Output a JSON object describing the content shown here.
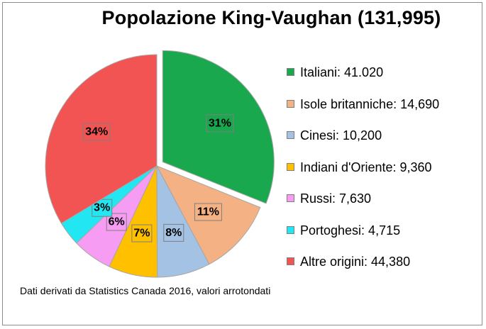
{
  "chart_data": {
    "type": "pie",
    "title": "Popolazione King-Vaughan  (131,995)",
    "slices": [
      {
        "legend": "Italiani: 41.020",
        "value": 41020,
        "percent_label": "31%",
        "color": "#1aa84f",
        "exploded": true
      },
      {
        "legend": "Isole britanniche: 14,690",
        "value": 14690,
        "percent_label": "11%",
        "color": "#f4b183",
        "exploded": false
      },
      {
        "legend": "Cinesi: 10,200",
        "value": 10200,
        "percent_label": "8%",
        "color": "#a4c2e4",
        "exploded": false
      },
      {
        "legend": "Indiani d'Oriente: 9,360",
        "value": 9360,
        "percent_label": "7%",
        "color": "#ffc000",
        "exploded": false
      },
      {
        "legend": "Russi: 7,630",
        "value": 7630,
        "percent_label": "6%",
        "color": "#f79cf3",
        "exploded": false
      },
      {
        "legend": "Portoghesi: 4,715",
        "value": 4715,
        "percent_label": "3%",
        "color": "#22e6f2",
        "exploded": false
      },
      {
        "legend": "Altre origini: 44,380",
        "value": 44380,
        "percent_label": "34%",
        "color": "#f25454",
        "exploded": false
      }
    ],
    "legend_position": "right",
    "note": "Dati derivati da Statistics Canada 2016, valori arrotondati"
  }
}
